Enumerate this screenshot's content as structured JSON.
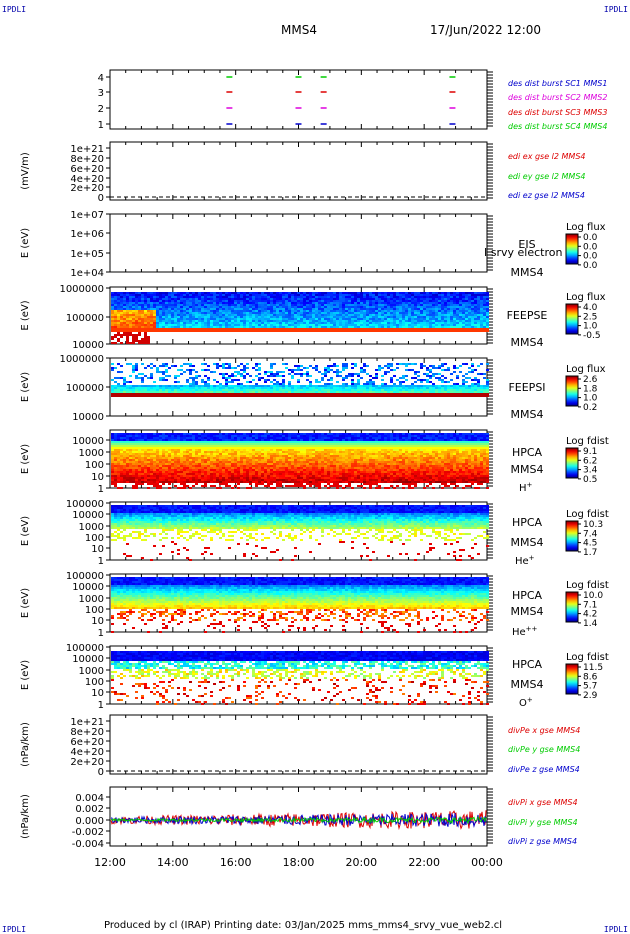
{
  "corners": {
    "tl": "IPDLI",
    "tr": "IPDLI",
    "bl": "IPDLI",
    "br": "IPDLI"
  },
  "header": {
    "spacecraft": "MMS4",
    "date": "17/Jun/2022 12:00"
  },
  "footer": {
    "text": "Produced by cl (IRAP)   Printing date: 03/Jan/2025   mms_mms4_srvy_vue_web2.cl"
  },
  "colors": {
    "red": "#dd0000",
    "green": "#00cc00",
    "blue": "#0000cc",
    "magenta": "#dd00dd"
  },
  "chart_data": {
    "type": "multi-panel time series and spectrograms",
    "x_tick_labels": [
      "12:00",
      "14:00",
      "16:00",
      "18:00",
      "20:00",
      "22:00",
      "00:00"
    ],
    "xlim": [
      "2022-06-17T12:00",
      "2022-06-18T00:00"
    ],
    "panels": [
      {
        "id": "burst",
        "type": "scatter",
        "ylim": [
          0.5,
          4.5
        ],
        "yticks": [
          "4",
          "3",
          "2",
          "1"
        ],
        "series": [
          {
            "name": "des dist burst SC1 MMS1",
            "color": "#0000cc",
            "y": 1,
            "x": [
              15.8,
              18.0,
              18.8,
              22.9
            ]
          },
          {
            "name": "des dist burst SC2 MMS2",
            "color": "#dd00dd",
            "y": 2,
            "x": [
              15.8,
              18.0,
              18.8,
              22.9
            ]
          },
          {
            "name": "des dist burst SC3 MMS3",
            "color": "#dd0000",
            "y": 3,
            "x": [
              15.8,
              18.0,
              18.8,
              22.9
            ]
          },
          {
            "name": "des dist burst SC4 MMS4",
            "color": "#00cc00",
            "y": 4,
            "x": [
              15.8,
              18.0,
              18.8,
              22.9
            ]
          }
        ]
      },
      {
        "id": "edi",
        "type": "line",
        "ylabel": "(mV/m)",
        "yticks": [
          "1e+21",
          "8e+20",
          "6e+20",
          "4e+20",
          "2e+20",
          "0"
        ],
        "series": [
          {
            "name": "edi ex gse l2 MMS4",
            "color": "#dd0000"
          },
          {
            "name": "edi ey gse l2 MMS4",
            "color": "#00cc00"
          },
          {
            "name": "edi ez gse l2 MMS4",
            "color": "#0000cc"
          }
        ]
      },
      {
        "id": "eis",
        "type": "heatmap",
        "ylabel": "E (eV)",
        "yticks": [
          "1e+07",
          "1e+06",
          "1e+05",
          "1e+04"
        ],
        "labels": [
          "EIS",
          "MMS4"
        ],
        "overlay": "I srvy electron to",
        "cbar": {
          "title": "Log flux",
          "ticks": [
            "0.0",
            "0.0",
            "0.0",
            "0.0"
          ]
        }
      },
      {
        "id": "feepse",
        "type": "heatmap",
        "ylabel": "E (eV)",
        "yticks": [
          "1000000",
          "100000",
          "10000"
        ],
        "labels": [
          "FEEPSE",
          "MMS4"
        ],
        "cbar": {
          "title": "Log flux",
          "ticks": [
            "4.0",
            "2.5",
            "1.0",
            "-0.5"
          ]
        }
      },
      {
        "id": "feepsi",
        "type": "heatmap",
        "ylabel": "E (eV)",
        "yticks": [
          "1000000",
          "100000",
          "10000"
        ],
        "labels": [
          "FEEPSI",
          "MMS4"
        ],
        "cbar": {
          "title": "Log flux",
          "ticks": [
            "2.6",
            "1.8",
            "1.0",
            "0.2"
          ]
        }
      },
      {
        "id": "hpca_h",
        "type": "heatmap",
        "ylabel": "E (eV)",
        "yticks": [
          "10000",
          "1000",
          "100",
          "10",
          "1"
        ],
        "labels": [
          "HPCA",
          "MMS4"
        ],
        "species": "H",
        "charge": "+",
        "cbar": {
          "title": "Log fdist",
          "ticks": [
            "9.1",
            "6.2",
            "3.4",
            "0.5"
          ]
        }
      },
      {
        "id": "hpca_he",
        "type": "heatmap",
        "ylabel": "E (eV)",
        "yticks": [
          "100000",
          "10000",
          "1000",
          "100",
          "10",
          "1"
        ],
        "labels": [
          "HPCA",
          "MMS4"
        ],
        "species": "He",
        "charge": "+",
        "cbar": {
          "title": "Log fdist",
          "ticks": [
            "10.3",
            "7.4",
            "4.5",
            "1.7"
          ]
        }
      },
      {
        "id": "hpca_hepp",
        "type": "heatmap",
        "ylabel": "E (eV)",
        "yticks": [
          "100000",
          "10000",
          "1000",
          "100",
          "10",
          "1"
        ],
        "labels": [
          "HPCA",
          "MMS4"
        ],
        "species": "He",
        "charge": "++",
        "cbar": {
          "title": "Log fdist",
          "ticks": [
            "10.0",
            "7.1",
            "4.2",
            "1.4"
          ]
        }
      },
      {
        "id": "hpca_o",
        "type": "heatmap",
        "ylabel": "E (eV)",
        "yticks": [
          "100000",
          "10000",
          "1000",
          "100",
          "10",
          "1"
        ],
        "labels": [
          "HPCA",
          "MMS4"
        ],
        "species": "O",
        "charge": "+",
        "cbar": {
          "title": "Log fdist",
          "ticks": [
            "11.5",
            "8.6",
            "5.7",
            "2.9"
          ]
        }
      },
      {
        "id": "divpe",
        "type": "line",
        "ylabel": "(nPa/km)",
        "yticks": [
          "1e+21",
          "8e+20",
          "6e+20",
          "4e+20",
          "2e+20",
          "0"
        ],
        "series": [
          {
            "name": "divPe x gse MMS4",
            "color": "#dd0000"
          },
          {
            "name": "divPe y gse MMS4",
            "color": "#00cc00"
          },
          {
            "name": "divPe z gse MMS4",
            "color": "#0000cc"
          }
        ]
      },
      {
        "id": "divpi",
        "type": "line",
        "ylabel": "(nPa/km)",
        "yticks": [
          "0.004",
          "0.002",
          "0.000",
          "-0.002",
          "-0.004"
        ],
        "ylim": [
          -0.005,
          0.005
        ],
        "series": [
          {
            "name": "divPi x gse MMS4",
            "color": "#dd0000"
          },
          {
            "name": "divPi y gse MMS4",
            "color": "#00cc00"
          },
          {
            "name": "divPi z gse MMS4",
            "color": "#0000cc"
          }
        ]
      }
    ]
  }
}
